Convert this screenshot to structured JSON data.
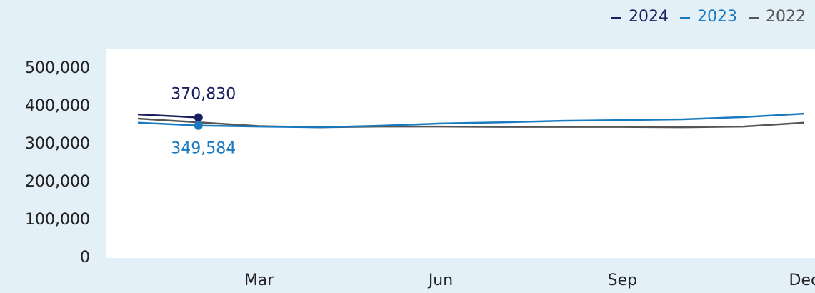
{
  "chart_data": {
    "type": "line",
    "categories": [
      null,
      null,
      "Mar",
      null,
      null,
      "Jun",
      null,
      null,
      "Sep",
      null,
      null,
      "Dec"
    ],
    "series": [
      {
        "name": "2024",
        "color": "#1b1f5e",
        "values": [
          379000,
          370830,
          null,
          null,
          null,
          null,
          null,
          null,
          null,
          null,
          null,
          null
        ],
        "value_labels": [
          null,
          "370,830",
          null,
          null,
          null,
          null,
          null,
          null,
          null,
          null,
          null,
          null
        ],
        "label_side": "above",
        "marker_index": 1
      },
      {
        "name": "2023",
        "color": "#1a7abf",
        "values": [
          357000,
          349584,
          347000,
          345000,
          349000,
          355000,
          358000,
          362000,
          364000,
          366000,
          372000,
          381000
        ],
        "value_labels": [
          null,
          "349,584",
          null,
          null,
          null,
          null,
          null,
          null,
          null,
          null,
          null,
          null
        ],
        "label_side": "below",
        "marker_index": 1
      },
      {
        "name": "2022",
        "color": "#555555",
        "values": [
          368000,
          358000,
          348000,
          345000,
          347000,
          347000,
          346000,
          346000,
          346000,
          345000,
          347000,
          357000
        ]
      }
    ],
    "ylim": [
      0,
      500000
    ],
    "yticks": [
      0,
      {
        "value": 100000,
        "label": "100,000"
      },
      {
        "value": 200000,
        "label": "200,000"
      },
      {
        "value": 300000,
        "label": "300,000"
      },
      {
        "value": 400000,
        "label": "400,000"
      },
      {
        "value": 500000,
        "label": "500,000"
      }
    ],
    "legend": "top-right"
  }
}
